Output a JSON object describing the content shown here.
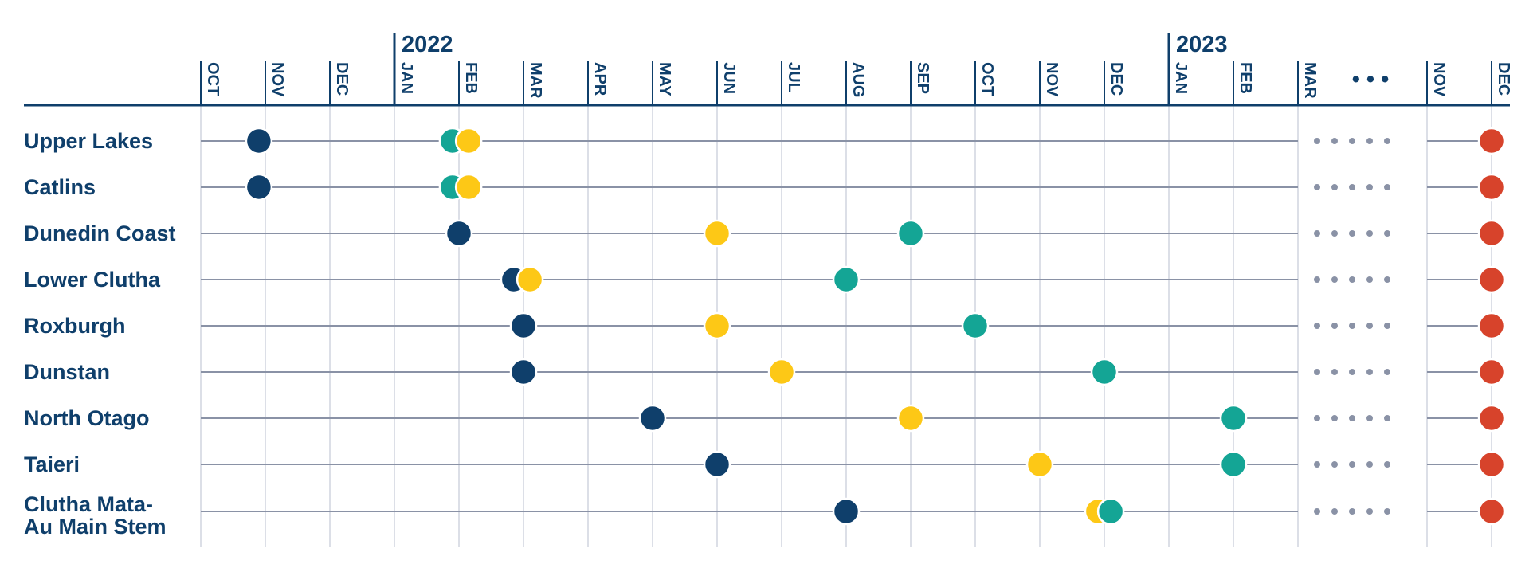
{
  "chart_data": {
    "type": "timeline",
    "title": "",
    "years": [
      {
        "label": "2022",
        "at_month": "JAN"
      },
      {
        "label": "2023",
        "at_month": "JAN"
      }
    ],
    "months": [
      "OCT",
      "NOV",
      "DEC",
      "JAN",
      "FEB",
      "MAR",
      "APR",
      "MAY",
      "JUN",
      "JUL",
      "AUG",
      "SEP",
      "OCT",
      "NOV",
      "DEC",
      "JAN",
      "FEB",
      "MAR",
      "NOV",
      "DEC"
    ],
    "gap_ellipsis": "• • •",
    "colors": {
      "navy": "#0f3f6b",
      "teal": "#14a595",
      "yellow": "#fdc816",
      "red": "#d7432b",
      "line": "#8a92a6",
      "grid": "#dcdfe7",
      "axis": "#0f3f6b"
    },
    "rows": [
      {
        "label": [
          "Upper Lakes"
        ],
        "events": [
          {
            "month": 0.9,
            "color": "navy"
          },
          {
            "month": 3.9,
            "color": "teal"
          },
          {
            "month": 4.15,
            "color": "yellow"
          },
          {
            "month": 19,
            "color": "red"
          }
        ]
      },
      {
        "label": [
          "Catlins"
        ],
        "events": [
          {
            "month": 0.9,
            "color": "navy"
          },
          {
            "month": 3.9,
            "color": "teal"
          },
          {
            "month": 4.15,
            "color": "yellow"
          },
          {
            "month": 19,
            "color": "red"
          }
        ]
      },
      {
        "label": [
          "Dunedin Coast"
        ],
        "events": [
          {
            "month": 4.0,
            "color": "navy"
          },
          {
            "month": 8.0,
            "color": "yellow"
          },
          {
            "month": 11.0,
            "color": "teal"
          },
          {
            "month": 19,
            "color": "red"
          }
        ]
      },
      {
        "label": [
          "Lower Clutha"
        ],
        "events": [
          {
            "month": 4.85,
            "color": "navy"
          },
          {
            "month": 5.1,
            "color": "yellow"
          },
          {
            "month": 10.0,
            "color": "teal"
          },
          {
            "month": 19,
            "color": "red"
          }
        ]
      },
      {
        "label": [
          "Roxburgh"
        ],
        "events": [
          {
            "month": 5.0,
            "color": "navy"
          },
          {
            "month": 8.0,
            "color": "yellow"
          },
          {
            "month": 12.0,
            "color": "teal"
          },
          {
            "month": 19,
            "color": "red"
          }
        ]
      },
      {
        "label": [
          "Dunstan"
        ],
        "events": [
          {
            "month": 5.0,
            "color": "navy"
          },
          {
            "month": 9.0,
            "color": "yellow"
          },
          {
            "month": 14.0,
            "color": "teal"
          },
          {
            "month": 19,
            "color": "red"
          }
        ]
      },
      {
        "label": [
          "North Otago"
        ],
        "events": [
          {
            "month": 7.0,
            "color": "navy"
          },
          {
            "month": 11.0,
            "color": "yellow"
          },
          {
            "month": 16.0,
            "color": "teal"
          },
          {
            "month": 19,
            "color": "red"
          }
        ]
      },
      {
        "label": [
          "Taieri"
        ],
        "events": [
          {
            "month": 8.0,
            "color": "navy"
          },
          {
            "month": 13.0,
            "color": "yellow"
          },
          {
            "month": 16.0,
            "color": "teal"
          },
          {
            "month": 19,
            "color": "red"
          }
        ]
      },
      {
        "label": [
          "Clutha Mata-",
          "Au Main Stem"
        ],
        "events": [
          {
            "month": 10.0,
            "color": "navy"
          },
          {
            "month": 13.9,
            "color": "yellow"
          },
          {
            "month": 14.1,
            "color": "teal"
          },
          {
            "month": 19,
            "color": "red"
          }
        ]
      }
    ]
  }
}
